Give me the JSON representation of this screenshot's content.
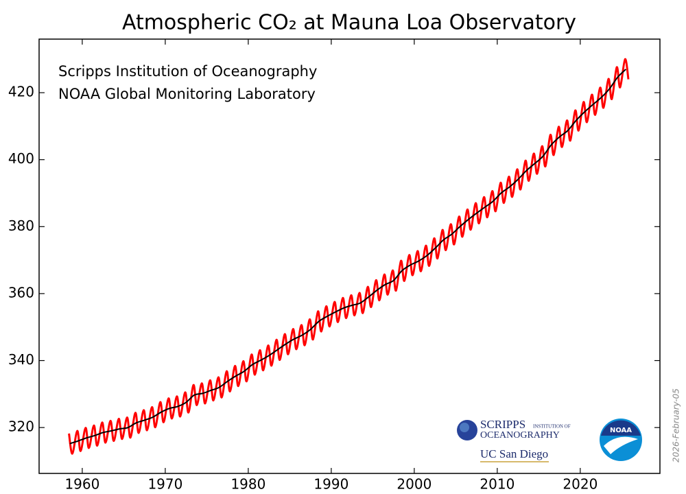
{
  "chart_data": {
    "type": "line",
    "title": "Atmospheric CO₂ at Mauna Loa Observatory",
    "annotations": [
      "Scripps Institution of Oceanography",
      "NOAA Global Monitoring Laboratory"
    ],
    "date_stamp": "2026-February-05",
    "logos": {
      "scripps_top": "SCRIPPS",
      "scripps_small": "INSTITUTION OF",
      "scripps_bottom": "OCEANOGRAPHY",
      "ucsd": "UC San Diego",
      "noaa": "NOAA"
    },
    "xlim": [
      1954.8,
      2029.6
    ],
    "ylim": [
      306.3,
      436.0
    ],
    "xticks": [
      1960,
      1970,
      1980,
      1990,
      2000,
      2010,
      2020
    ],
    "yticks": [
      320,
      340,
      360,
      380,
      400,
      420
    ],
    "series": [
      {
        "color": "#ff0000",
        "x": [
          1958.4,
          1958.8,
          1959.4,
          1959.8,
          1960.4,
          1960.8,
          1961.4,
          1961.8,
          1962.4,
          1962.8,
          1963.4,
          1963.8,
          1964.4,
          1964.8,
          1965.4,
          1965.8,
          1966.4,
          1966.8,
          1967.4,
          1967.8,
          1968.4,
          1968.8,
          1969.4,
          1969.8,
          1970.4,
          1970.8,
          1971.4,
          1971.8,
          1972.4,
          1972.8,
          1973.4,
          1973.8,
          1974.4,
          1974.8,
          1975.4,
          1975.8,
          1976.4,
          1976.8,
          1977.4,
          1977.8,
          1978.4,
          1978.8,
          1979.4,
          1979.8,
          1980.4,
          1980.8,
          1981.4,
          1981.8,
          1982.4,
          1982.8,
          1983.4,
          1983.8,
          1984.4,
          1984.8,
          1985.4,
          1985.8,
          1986.4,
          1986.8,
          1987.4,
          1987.8,
          1988.4,
          1988.8,
          1989.4,
          1989.8,
          1990.4,
          1990.8,
          1991.4,
          1991.8,
          1992.4,
          1992.8,
          1993.4,
          1993.8,
          1994.4,
          1994.8,
          1995.4,
          1995.8,
          1996.4,
          1996.8,
          1997.4,
          1997.8,
          1998.4,
          1998.8,
          1999.4,
          1999.8,
          2000.4,
          2000.8,
          2001.4,
          2001.8,
          2002.4,
          2002.8,
          2003.4,
          2003.8,
          2004.4,
          2004.8,
          2005.4,
          2005.8,
          2006.4,
          2006.8,
          2007.4,
          2007.8,
          2008.4,
          2008.8,
          2009.4,
          2009.8,
          2010.4,
          2010.8,
          2011.4,
          2011.8,
          2012.4,
          2012.8,
          2013.4,
          2013.8,
          2014.4,
          2014.8,
          2015.4,
          2015.8,
          2016.4,
          2016.8,
          2017.4,
          2017.8,
          2018.4,
          2018.8,
          2019.4,
          2019.8,
          2020.4,
          2020.8,
          2021.4,
          2021.8,
          2022.4,
          2022.8,
          2023.4,
          2023.8,
          2024.4,
          2024.8,
          2025.4,
          2025.8
        ],
        "values": [
          318.2,
          312.2,
          319.0,
          313.0,
          319.9,
          313.9,
          320.6,
          314.6,
          321.5,
          315.5,
          322.0,
          316.0,
          322.6,
          316.6,
          323.0,
          317.0,
          324.4,
          318.4,
          325.2,
          319.2,
          326.1,
          320.1,
          327.6,
          321.6,
          328.7,
          322.7,
          329.3,
          323.3,
          330.5,
          324.5,
          332.7,
          326.7,
          333.2,
          327.2,
          334.1,
          328.1,
          335.0,
          329.0,
          336.8,
          330.8,
          338.4,
          332.4,
          339.8,
          333.8,
          341.8,
          335.8,
          343.1,
          337.1,
          344.5,
          338.5,
          346.2,
          340.2,
          347.9,
          341.9,
          349.4,
          343.4,
          350.6,
          344.6,
          352.3,
          346.3,
          354.7,
          348.7,
          356.2,
          350.2,
          357.5,
          351.5,
          358.7,
          352.7,
          359.5,
          353.5,
          360.2,
          354.2,
          362.0,
          356.0,
          364.0,
          358.0,
          365.7,
          359.7,
          366.9,
          360.9,
          369.8,
          363.8,
          371.5,
          365.5,
          372.7,
          366.7,
          374.3,
          368.3,
          376.5,
          370.5,
          379.0,
          373.0,
          380.7,
          374.7,
          383.0,
          377.0,
          385.1,
          379.1,
          387.0,
          381.0,
          388.8,
          382.8,
          390.6,
          384.6,
          393.1,
          387.1,
          394.9,
          388.9,
          397.1,
          391.1,
          399.7,
          393.7,
          401.8,
          395.8,
          404.0,
          398.0,
          407.4,
          401.4,
          409.8,
          403.8,
          411.7,
          405.7,
          414.7,
          408.7,
          417.2,
          411.2,
          419.4,
          413.4,
          421.5,
          415.5,
          424.1,
          418.1,
          427.6,
          421.6,
          430.0,
          424.0
        ]
      },
      {
        "color": "#000000",
        "x": [
          1958.5,
          1959.5,
          1960.5,
          1961.5,
          1962.5,
          1963.5,
          1964.5,
          1965.5,
          1966.5,
          1967.5,
          1968.5,
          1969.5,
          1970.5,
          1971.5,
          1972.5,
          1973.5,
          1974.5,
          1975.5,
          1976.5,
          1977.5,
          1978.5,
          1979.5,
          1980.5,
          1981.5,
          1982.5,
          1983.5,
          1984.5,
          1985.5,
          1986.5,
          1987.5,
          1988.5,
          1989.5,
          1990.5,
          1991.5,
          1992.5,
          1993.5,
          1994.5,
          1995.5,
          1996.5,
          1997.5,
          1998.5,
          1999.5,
          2000.5,
          2001.5,
          2002.5,
          2003.5,
          2004.5,
          2005.5,
          2006.5,
          2007.5,
          2008.5,
          2009.5,
          2010.5,
          2011.5,
          2012.5,
          2013.5,
          2014.5,
          2015.5,
          2016.5,
          2017.5,
          2018.5,
          2019.5,
          2020.5,
          2021.5,
          2022.5,
          2023.5,
          2024.5,
          2025.5
        ],
        "values": [
          315.2,
          316.0,
          316.9,
          317.6,
          318.5,
          319.0,
          319.6,
          320.0,
          321.4,
          322.2,
          323.1,
          324.6,
          325.7,
          326.3,
          327.5,
          329.7,
          330.2,
          331.1,
          332.0,
          333.8,
          335.4,
          336.8,
          338.8,
          340.1,
          341.5,
          343.2,
          344.9,
          346.4,
          347.6,
          349.3,
          351.7,
          353.2,
          354.5,
          355.7,
          356.5,
          357.2,
          359.0,
          361.0,
          362.7,
          363.9,
          366.8,
          368.5,
          369.7,
          371.3,
          373.5,
          376.0,
          377.7,
          380.0,
          382.1,
          384.0,
          385.8,
          387.6,
          390.1,
          391.9,
          394.1,
          396.7,
          398.8,
          401.0,
          404.4,
          406.8,
          408.7,
          411.7,
          414.2,
          416.4,
          418.5,
          421.1,
          424.6,
          427.0
        ]
      }
    ]
  }
}
